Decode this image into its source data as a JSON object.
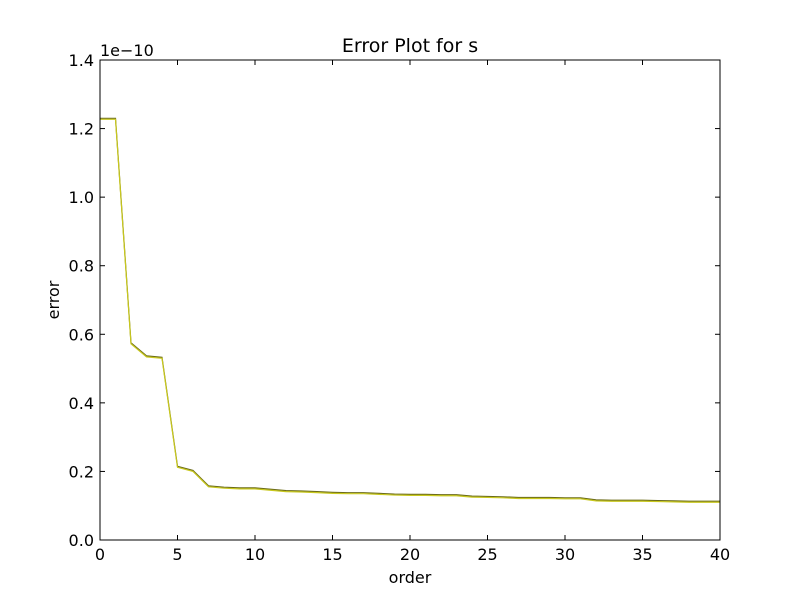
{
  "chart_data": {
    "type": "line",
    "title": "Error Plot for s",
    "xlabel": "order",
    "ylabel": "error",
    "y_offset_label": "1e−10",
    "xlim": [
      0,
      40
    ],
    "ylim": [
      0,
      1.4
    ],
    "x_ticks": [
      0,
      5,
      10,
      15,
      20,
      25,
      30,
      35,
      40
    ],
    "x_tick_labels": [
      "0",
      "5",
      "10",
      "15",
      "20",
      "25",
      "30",
      "35",
      "40"
    ],
    "y_ticks": [
      0,
      0.2,
      0.4,
      0.6,
      0.8,
      1.0,
      1.2,
      1.4
    ],
    "y_tick_labels": [
      "0.0",
      "0.2",
      "0.4",
      "0.6",
      "0.8",
      "1.0",
      "1.2",
      "1.4"
    ],
    "grid": false,
    "series": [
      {
        "color": "#6b6b1a",
        "x": [
          0,
          1,
          2,
          3,
          4,
          5,
          6,
          7,
          8,
          9,
          10,
          11,
          12,
          13,
          14,
          15,
          16,
          17,
          18,
          19,
          20,
          21,
          22,
          23,
          24,
          25,
          26,
          27,
          28,
          29,
          30,
          31,
          32,
          33,
          34,
          35,
          36,
          37,
          38,
          39,
          40
        ],
        "values": [
          1.23,
          1.23,
          0.575,
          0.537,
          0.533,
          0.215,
          0.203,
          0.158,
          0.154,
          0.152,
          0.152,
          0.148,
          0.144,
          0.143,
          0.141,
          0.139,
          0.138,
          0.138,
          0.136,
          0.134,
          0.133,
          0.133,
          0.132,
          0.132,
          0.128,
          0.127,
          0.126,
          0.124,
          0.124,
          0.124,
          0.123,
          0.123,
          0.117,
          0.116,
          0.116,
          0.116,
          0.115,
          0.114,
          0.113,
          0.113,
          0.113
        ]
      },
      {
        "color": "#c8c81e",
        "x": [
          0,
          1,
          2,
          3,
          4,
          5,
          6,
          7,
          8,
          9,
          10,
          11,
          12,
          13,
          14,
          15,
          16,
          17,
          18,
          19,
          20,
          21,
          22,
          23,
          24,
          25,
          26,
          27,
          28,
          29,
          30,
          31,
          32,
          33,
          34,
          35,
          36,
          37,
          38,
          39,
          40
        ],
        "values": [
          1.23,
          1.23,
          0.575,
          0.537,
          0.533,
          0.215,
          0.203,
          0.158,
          0.154,
          0.152,
          0.152,
          0.148,
          0.144,
          0.143,
          0.141,
          0.139,
          0.138,
          0.138,
          0.136,
          0.134,
          0.133,
          0.133,
          0.132,
          0.132,
          0.128,
          0.127,
          0.126,
          0.124,
          0.124,
          0.124,
          0.123,
          0.123,
          0.117,
          0.116,
          0.116,
          0.116,
          0.115,
          0.114,
          0.113,
          0.113,
          0.113
        ]
      }
    ]
  }
}
